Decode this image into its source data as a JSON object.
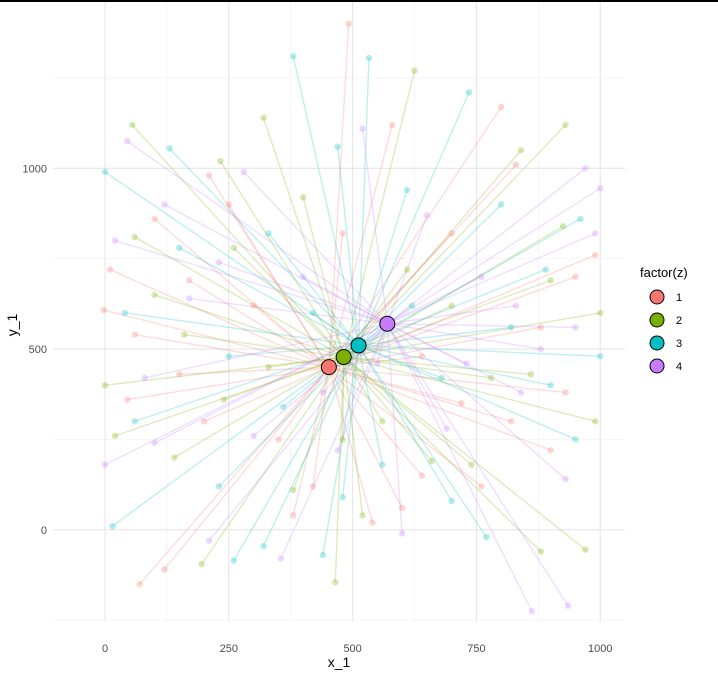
{
  "chart_data": {
    "type": "scatter",
    "subtype": "star-segments",
    "title": "",
    "xlabel": "x_1",
    "ylabel": "y_1",
    "xlim": [
      -105,
      1050
    ],
    "ylim": [
      -255,
      1460
    ],
    "xticks": [
      0,
      250,
      500,
      750,
      1000
    ],
    "yticks": [
      0,
      500,
      1000
    ],
    "grid": true,
    "theme": "minimal",
    "point_alpha": 0.3,
    "segment_alpha": 0.25,
    "legend": {
      "title": "factor(z)",
      "position": "right",
      "entries": [
        "1",
        "2",
        "3",
        "4"
      ]
    },
    "series": [
      {
        "name": "1",
        "color": "#F8766D",
        "centroid": [
          452,
          450
        ],
        "points": [
          [
            492,
            1400
          ],
          [
            580,
            1120
          ],
          [
            800,
            1170
          ],
          [
            -3,
            608
          ],
          [
            70,
            -150
          ],
          [
            120,
            -110
          ],
          [
            950,
            700
          ],
          [
            990,
            760
          ],
          [
            45,
            360
          ],
          [
            10,
            720
          ],
          [
            210,
            980
          ],
          [
            350,
            250
          ],
          [
            600,
            60
          ],
          [
            700,
            820
          ],
          [
            820,
            300
          ],
          [
            880,
            560
          ],
          [
            150,
            430
          ],
          [
            250,
            900
          ],
          [
            420,
            120
          ],
          [
            540,
            20
          ],
          [
            760,
            120
          ],
          [
            930,
            380
          ],
          [
            60,
            540
          ],
          [
            300,
            620
          ],
          [
            480,
            820
          ],
          [
            640,
            480
          ],
          [
            720,
            350
          ],
          [
            100,
            860
          ],
          [
            200,
            300
          ],
          [
            900,
            220
          ],
          [
            830,
            1010
          ],
          [
            170,
            690
          ],
          [
            640,
            150
          ],
          [
            380,
            40
          ]
        ]
      },
      {
        "name": "2",
        "color": "#7CAE00",
        "centroid": [
          482,
          478
        ],
        "points": [
          [
            625,
            1270
          ],
          [
            320,
            1140
          ],
          [
            55,
            1120
          ],
          [
            233,
            1020
          ],
          [
            930,
            1120
          ],
          [
            465,
            -145
          ],
          [
            195,
            -95
          ],
          [
            925,
            840
          ],
          [
            1000,
            600
          ],
          [
            990,
            300
          ],
          [
            0,
            400
          ],
          [
            20,
            260
          ],
          [
            140,
            200
          ],
          [
            380,
            110
          ],
          [
            520,
            40
          ],
          [
            660,
            190
          ],
          [
            880,
            -60
          ],
          [
            970,
            -55
          ],
          [
            840,
            1050
          ],
          [
            100,
            650
          ],
          [
            260,
            780
          ],
          [
            400,
            920
          ],
          [
            700,
            620
          ],
          [
            780,
            420
          ],
          [
            560,
            300
          ],
          [
            330,
            450
          ],
          [
            160,
            540
          ],
          [
            60,
            810
          ],
          [
            900,
            690
          ],
          [
            480,
            250
          ],
          [
            610,
            720
          ],
          [
            740,
            180
          ],
          [
            240,
            360
          ],
          [
            860,
            430
          ]
        ]
      },
      {
        "name": "3",
        "color": "#00BFC4",
        "centroid": [
          512,
          510
        ],
        "points": [
          [
            380,
            1310
          ],
          [
            533,
            1305
          ],
          [
            735,
            1210
          ],
          [
            470,
            1060
          ],
          [
            0,
            990
          ],
          [
            15,
            10
          ],
          [
            260,
            -85
          ],
          [
            320,
            -45
          ],
          [
            440,
            -70
          ],
          [
            770,
            -20
          ],
          [
            960,
            860
          ],
          [
            1000,
            480
          ],
          [
            950,
            250
          ],
          [
            130,
            1055
          ],
          [
            230,
            120
          ],
          [
            360,
            340
          ],
          [
            610,
            940
          ],
          [
            700,
            80
          ],
          [
            820,
            560
          ],
          [
            890,
            720
          ],
          [
            60,
            300
          ],
          [
            150,
            780
          ],
          [
            420,
            600
          ],
          [
            560,
            180
          ],
          [
            680,
            420
          ],
          [
            800,
            900
          ],
          [
            330,
            820
          ],
          [
            480,
            90
          ],
          [
            900,
            400
          ],
          [
            40,
            600
          ],
          [
            250,
            480
          ],
          [
            620,
            620
          ]
        ]
      },
      {
        "name": "4",
        "color": "#C77CFF",
        "centroid": [
          570,
          570
        ],
        "points": [
          [
            520,
            1110
          ],
          [
            45,
            1075
          ],
          [
            862,
            -225
          ],
          [
            935,
            -210
          ],
          [
            355,
            -80
          ],
          [
            210,
            -30
          ],
          [
            1000,
            945
          ],
          [
            970,
            1000
          ],
          [
            990,
            820
          ],
          [
            20,
            800
          ],
          [
            0,
            180
          ],
          [
            80,
            420
          ],
          [
            170,
            640
          ],
          [
            300,
            260
          ],
          [
            440,
            380
          ],
          [
            600,
            -10
          ],
          [
            690,
            280
          ],
          [
            760,
            700
          ],
          [
            880,
            500
          ],
          [
            930,
            140
          ],
          [
            120,
            900
          ],
          [
            280,
            990
          ],
          [
            470,
            220
          ],
          [
            650,
            870
          ],
          [
            830,
            620
          ],
          [
            230,
            740
          ],
          [
            550,
            460
          ],
          [
            730,
            460
          ],
          [
            100,
            240
          ],
          [
            400,
            700
          ],
          [
            950,
            560
          ],
          [
            840,
            380
          ]
        ]
      }
    ]
  }
}
